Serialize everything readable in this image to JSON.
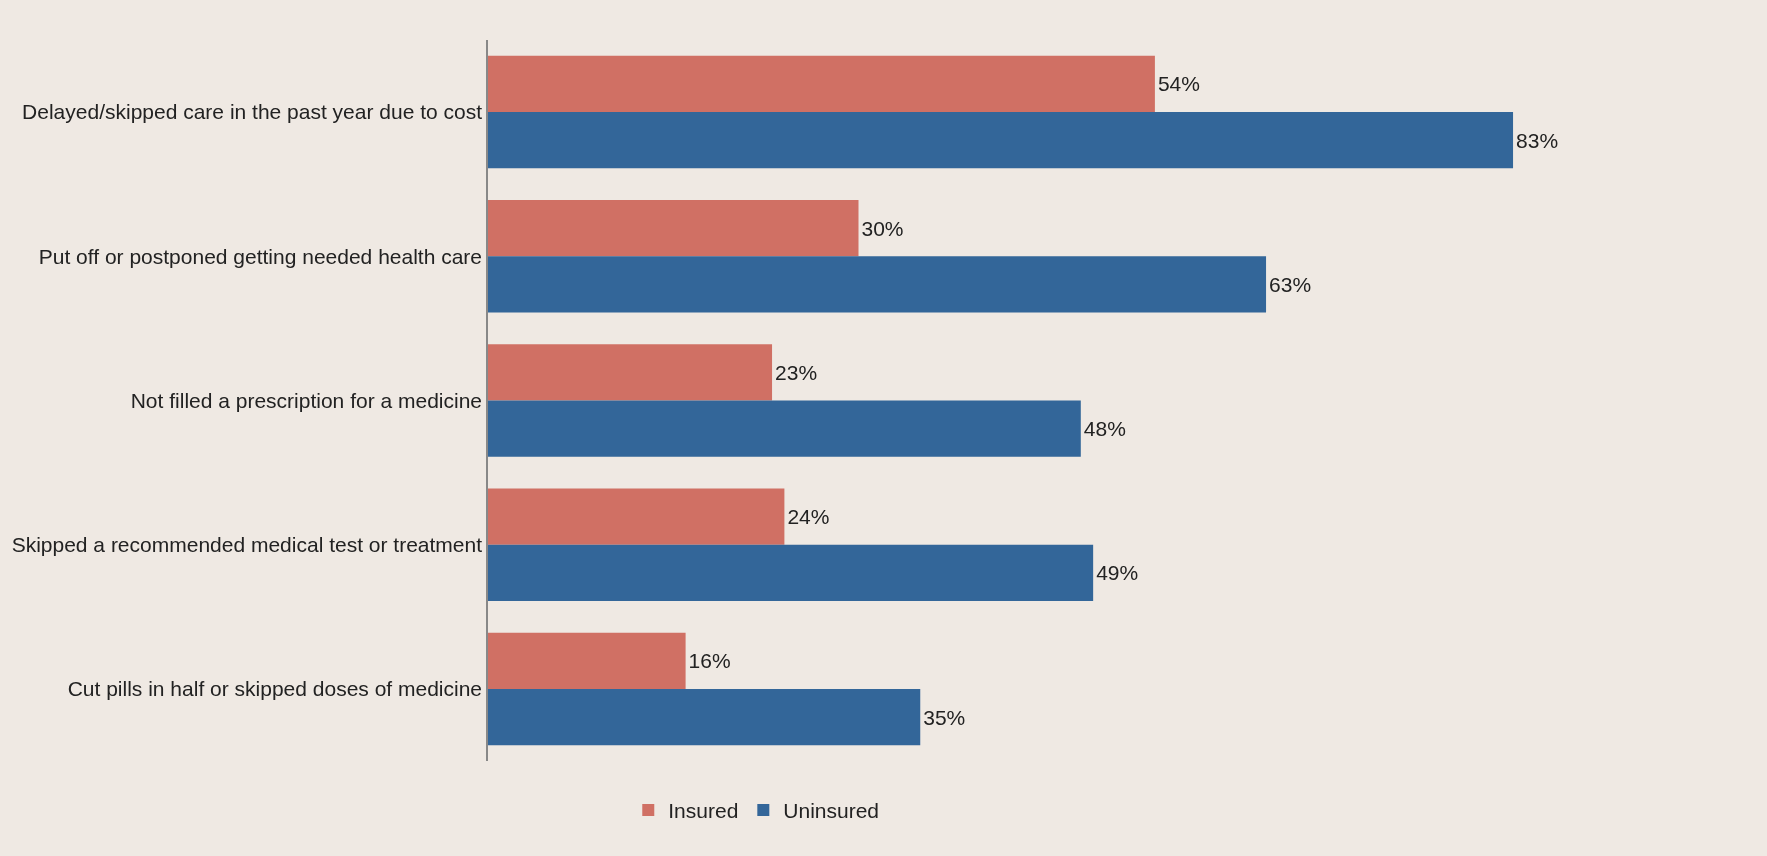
{
  "chart_data": {
    "type": "bar",
    "orientation": "horizontal",
    "categories": [
      "Delayed/skipped care in the past year due to cost",
      "Put off or postponed getting needed health care",
      "Not filled a prescription for a medicine",
      "Skipped a recommended medical test or treatment",
      "Cut pills in half or skipped doses of medicine"
    ],
    "series": [
      {
        "name": "Insured",
        "color": "#d07064",
        "values": [
          54,
          30,
          23,
          24,
          16
        ],
        "value_labels": [
          "54%",
          "30%",
          "23%",
          "24%",
          "16%"
        ]
      },
      {
        "name": "Uninsured",
        "color": "#336699",
        "values": [
          83,
          63,
          48,
          49,
          35
        ],
        "value_labels": [
          "83%",
          "63%",
          "48%",
          "49%",
          "35%"
        ]
      }
    ],
    "tick_labels": "y",
    "grid": false,
    "legend": "bottom"
  }
}
